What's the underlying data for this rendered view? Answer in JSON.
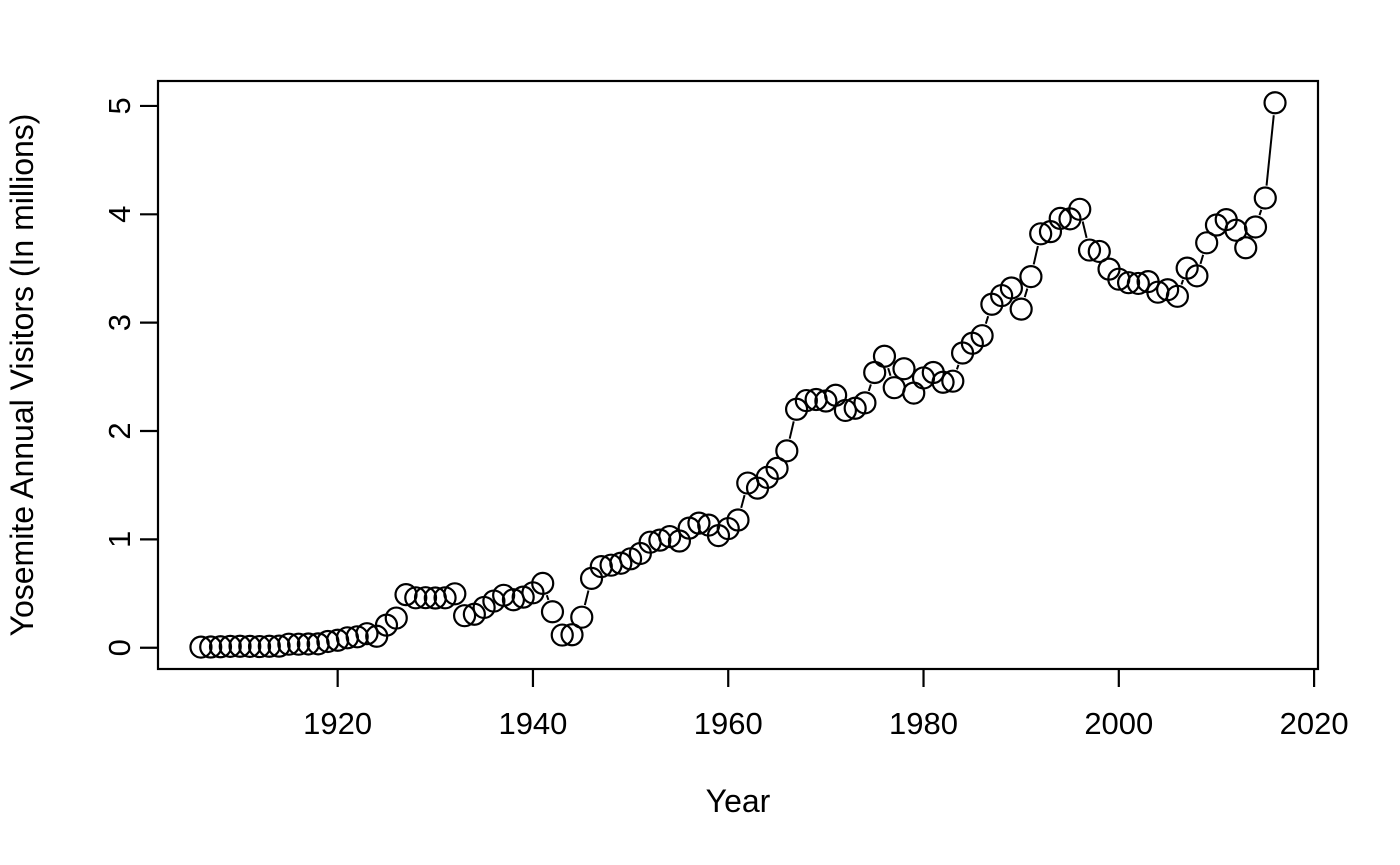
{
  "colors": {
    "foreground": "#000000",
    "background": "#ffffff"
  },
  "chart_data": {
    "type": "scatter",
    "title": "",
    "xlabel": "Year",
    "ylabel": "Yosemite Annual Visitors (In millions)",
    "marker": "open-circle",
    "line_style": "segments-between-markers",
    "grid": "off",
    "legend": "none",
    "xlim": [
      1901.6,
      2020.4
    ],
    "ylim": [
      -0.196,
      5.23
    ],
    "x_ticks": [
      "1920",
      "1940",
      "1960",
      "1980",
      "2000",
      "2020"
    ],
    "y_ticks": [
      "0",
      "1",
      "2",
      "3",
      "4",
      "5"
    ],
    "x": [
      1906,
      1907,
      1908,
      1909,
      1910,
      1911,
      1912,
      1913,
      1914,
      1915,
      1916,
      1917,
      1918,
      1919,
      1920,
      1921,
      1922,
      1923,
      1924,
      1925,
      1926,
      1927,
      1928,
      1929,
      1930,
      1931,
      1932,
      1933,
      1934,
      1935,
      1936,
      1937,
      1938,
      1939,
      1940,
      1941,
      1942,
      1943,
      1944,
      1945,
      1946,
      1947,
      1948,
      1949,
      1950,
      1951,
      1952,
      1953,
      1954,
      1955,
      1956,
      1957,
      1958,
      1959,
      1960,
      1961,
      1962,
      1963,
      1964,
      1965,
      1966,
      1967,
      1968,
      1969,
      1970,
      1971,
      1972,
      1973,
      1974,
      1975,
      1976,
      1977,
      1978,
      1979,
      1980,
      1981,
      1982,
      1983,
      1984,
      1985,
      1986,
      1987,
      1988,
      1989,
      1990,
      1991,
      1992,
      1993,
      1994,
      1995,
      1996,
      1997,
      1998,
      1999,
      2000,
      2001,
      2002,
      2003,
      2004,
      2005,
      2006,
      2007,
      2008,
      2009,
      2010,
      2011,
      2012,
      2013,
      2014,
      2015,
      2016
    ],
    "series": [
      {
        "name": "Yosemite annual visitors (millions)",
        "values": [
          0.006,
          0.007,
          0.009,
          0.013,
          0.014,
          0.013,
          0.011,
          0.014,
          0.015,
          0.033,
          0.033,
          0.035,
          0.036,
          0.058,
          0.069,
          0.092,
          0.101,
          0.13,
          0.106,
          0.209,
          0.274,
          0.49,
          0.461,
          0.462,
          0.459,
          0.461,
          0.498,
          0.296,
          0.309,
          0.372,
          0.431,
          0.484,
          0.443,
          0.467,
          0.507,
          0.594,
          0.332,
          0.117,
          0.12,
          0.282,
          0.64,
          0.749,
          0.762,
          0.78,
          0.821,
          0.87,
          0.974,
          0.993,
          1.026,
          0.985,
          1.104,
          1.15,
          1.132,
          1.035,
          1.1,
          1.179,
          1.52,
          1.473,
          1.572,
          1.655,
          1.817,
          2.201,
          2.281,
          2.291,
          2.277,
          2.33,
          2.19,
          2.21,
          2.26,
          2.54,
          2.69,
          2.4,
          2.575,
          2.35,
          2.49,
          2.54,
          2.45,
          2.46,
          2.72,
          2.81,
          2.88,
          3.17,
          3.25,
          3.32,
          3.125,
          3.425,
          3.82,
          3.84,
          3.962,
          3.958,
          4.046,
          3.67,
          3.657,
          3.494,
          3.401,
          3.369,
          3.362,
          3.379,
          3.281,
          3.304,
          3.243,
          3.503,
          3.432,
          3.737,
          3.901,
          3.951,
          3.853,
          3.691,
          3.883,
          4.15,
          5.029
        ]
      }
    ]
  }
}
